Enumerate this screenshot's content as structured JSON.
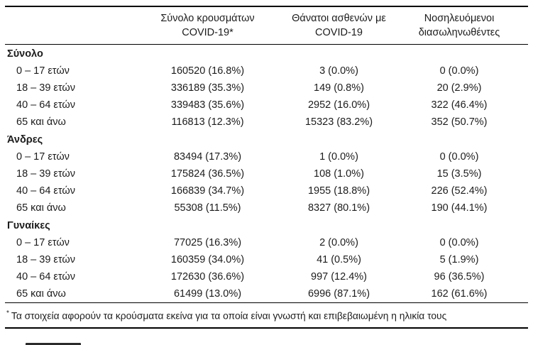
{
  "table": {
    "columns": [
      {
        "line1": "Σύνολο κρουσμάτων",
        "line2": "COVID-19*"
      },
      {
        "line1": "Θάνατοι ασθενών με",
        "line2": "COVID-19"
      },
      {
        "line1": "Νοσηλευόμενοι",
        "line2": "διασωληνωθέντες"
      }
    ],
    "groups": [
      {
        "label": "Σύνολο",
        "rows": [
          {
            "age": "0 – 17 ετών",
            "cases": "160520 (16.8%)",
            "deaths": "3 (0.0%)",
            "intubated": "0 (0.0%)"
          },
          {
            "age": "18 – 39 ετών",
            "cases": "336189 (35.3%)",
            "deaths": "149 (0.8%)",
            "intubated": "20 (2.9%)"
          },
          {
            "age": "40 – 64 ετών",
            "cases": "339483 (35.6%)",
            "deaths": "2952 (16.0%)",
            "intubated": "322 (46.4%)"
          },
          {
            "age": "65 και άνω",
            "cases": "116813 (12.3%)",
            "deaths": "15323 (83.2%)",
            "intubated": "352 (50.7%)"
          }
        ]
      },
      {
        "label": "Άνδρες",
        "rows": [
          {
            "age": "0 – 17 ετών",
            "cases": "83494 (17.3%)",
            "deaths": "1 (0.0%)",
            "intubated": "0 (0.0%)"
          },
          {
            "age": "18 – 39 ετών",
            "cases": "175824 (36.5%)",
            "deaths": "108 (1.0%)",
            "intubated": "15 (3.5%)"
          },
          {
            "age": "40 – 64 ετών",
            "cases": "166839 (34.7%)",
            "deaths": "1955 (18.8%)",
            "intubated": "226 (52.4%)"
          },
          {
            "age": "65 και άνω",
            "cases": "55308 (11.5%)",
            "deaths": "8327 (80.1%)",
            "intubated": "190 (44.1%)"
          }
        ]
      },
      {
        "label": "Γυναίκες",
        "rows": [
          {
            "age": "0 – 17 ετών",
            "cases": "77025 (16.3%)",
            "deaths": "2 (0.0%)",
            "intubated": "0 (0.0%)"
          },
          {
            "age": "18 – 39 ετών",
            "cases": "160359 (34.0%)",
            "deaths": "41 (0.5%)",
            "intubated": "5 (1.9%)"
          },
          {
            "age": "40 – 64 ετών",
            "cases": "172630 (36.6%)",
            "deaths": "997 (12.4%)",
            "intubated": "96 (36.5%)"
          },
          {
            "age": "65 και άνω",
            "cases": "61499 (13.0%)",
            "deaths": "6996 (87.1%)",
            "intubated": "162 (61.6%)"
          }
        ]
      }
    ],
    "footnote_marker": "*",
    "footnote": "Τα στοιχεία αφορούν τα κρούσματα εκείνα για τα οποία είναι γνωστή και επιβεβαιωμένη η ηλικία τους"
  }
}
